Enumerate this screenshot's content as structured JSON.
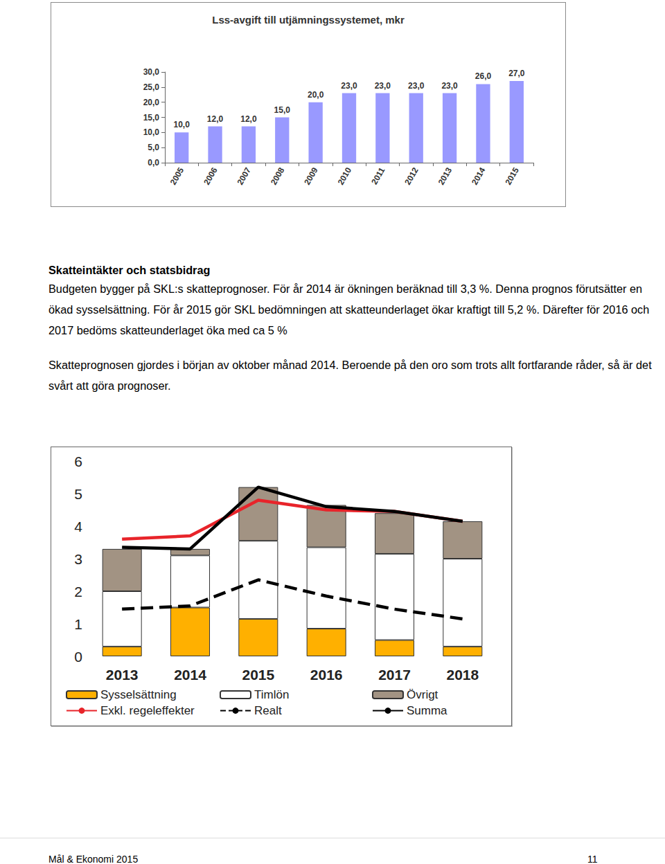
{
  "document": {
    "heading": "Skatteintäkter och statsbidrag",
    "paragraphs": [
      "Budgeten bygger på SKL:s skatteprognoser. För år 2014 är ökningen beräknad till 3,3 %. Denna prognos förutsätter en ökad sysselsättning. För år 2015 gör SKL bedömningen att skatteunderlaget ökar kraftigt till 5,2 %. Därefter för 2016 och 2017 bedöms skatteunderlaget öka med ca 5 %",
      "Skatteprognosen gjordes i början av oktober månad 2014. Beroende på den oro som trots allt fortfarande råder, så är det svårt att göra prognoser."
    ],
    "footer": {
      "left": "Mål & Ekonomi 2015",
      "right": "11"
    }
  },
  "chart_data": [
    {
      "type": "bar",
      "title": "Lss-avgift till utjämningssystemet, mkr",
      "categories": [
        "2005",
        "2006",
        "2007",
        "2008",
        "2009",
        "2010",
        "2011",
        "2012",
        "2013",
        "2014",
        "2015"
      ],
      "values": [
        10,
        12,
        12,
        15,
        20,
        23,
        23,
        23,
        23,
        26,
        27
      ],
      "value_labels": [
        "10,0",
        "12,0",
        "12,0",
        "15,0",
        "20,0",
        "23,0",
        "23,0",
        "23,0",
        "23,0",
        "26,0",
        "27,0"
      ],
      "color": "#9999ff",
      "data_labels": true,
      "grid": false,
      "ylim": [
        0,
        30
      ],
      "yticks": [
        {
          "value": 0,
          "label": "0,0"
        },
        {
          "value": 5,
          "label": "5,0"
        },
        {
          "value": 10,
          "label": "10,0"
        },
        {
          "value": 15,
          "label": "15,0"
        },
        {
          "value": 20,
          "label": "20,0"
        },
        {
          "value": 25,
          "label": "25,0"
        },
        {
          "value": 30,
          "label": "30,0"
        }
      ]
    },
    {
      "type": "bar",
      "stacked": true,
      "grid": false,
      "legend": "bottom",
      "categories": [
        "2013",
        "2014",
        "2015",
        "2016",
        "2017",
        "2018"
      ],
      "ylim": [
        0,
        6
      ],
      "yticks": [
        0,
        1,
        2,
        3,
        4,
        5,
        6
      ],
      "series": [
        {
          "name": "Sysselsättning",
          "type": "bar",
          "color": "#ffb000",
          "values": [
            0.3,
            1.5,
            1.15,
            0.85,
            0.5,
            0.3
          ]
        },
        {
          "name": "Timlön",
          "type": "bar",
          "color": "#ffffff",
          "values": [
            1.7,
            1.6,
            2.4,
            2.5,
            2.65,
            2.7
          ]
        },
        {
          "name": "Övrigt",
          "type": "bar",
          "color": "#a29383",
          "values": [
            1.3,
            0.2,
            1.65,
            1.3,
            1.25,
            1.15
          ]
        },
        {
          "name": "Exkl. regeleffekter",
          "type": "line",
          "color": "#e8242a",
          "line_style": "solid",
          "values": [
            3.6,
            3.7,
            4.8,
            4.5,
            4.45,
            4.15
          ]
        },
        {
          "name": "Realt",
          "type": "line",
          "color": "#000000",
          "line_style": "dashed",
          "values": [
            1.45,
            1.55,
            2.35,
            1.85,
            1.45,
            1.15
          ]
        },
        {
          "name": "Summa",
          "type": "line",
          "color": "#000000",
          "line_style": "solid",
          "values": [
            3.35,
            3.3,
            5.2,
            4.6,
            4.45,
            4.15
          ]
        }
      ]
    }
  ]
}
